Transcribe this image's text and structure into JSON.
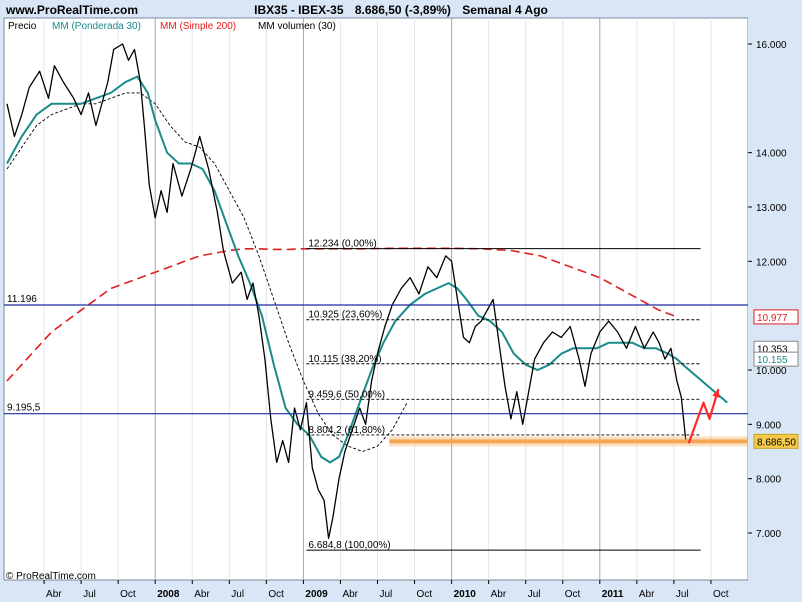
{
  "header": {
    "site": "www.ProRealTime.com",
    "symbol": "IBX35 - IBEX-35",
    "price_change": "8.686,50 (-3,89%)",
    "period": "Semanal  4 Ago"
  },
  "legend": {
    "price": "Precio",
    "ma_weighted": "MM (Ponderada 30)",
    "ma_simple": "MM (Simple 200)",
    "ma_volume": "MM volumen (30)"
  },
  "copyright": "© ProRealTime.com",
  "colors": {
    "background": "#d9e6f5",
    "plot": "#ffffff",
    "ma_weighted": "#1b8a8a",
    "ma_simple": "#e02020",
    "hline": "#1f2a9e",
    "support": "#f5a24a"
  },
  "chart_data": {
    "type": "line",
    "y_axis_side": "right",
    "ylim": [
      6500,
      16600
    ],
    "y_ticks": [
      {
        "value": 16000,
        "label": "16.000"
      },
      {
        "value": 14000,
        "label": "14.000"
      },
      {
        "value": 13000,
        "label": "13.000"
      },
      {
        "value": 12000,
        "label": "12.000"
      },
      {
        "value": 10000,
        "label": "10.000"
      },
      {
        "value": 9000,
        "label": "9.000"
      },
      {
        "value": 8000,
        "label": "8.000"
      },
      {
        "value": 7000,
        "label": "7.000"
      }
    ],
    "x_ticks": [
      {
        "t": 2007.25,
        "label": "Abr",
        "bold": false
      },
      {
        "t": 2007.5,
        "label": "Jul",
        "bold": false
      },
      {
        "t": 2007.75,
        "label": "Oct",
        "bold": false
      },
      {
        "t": 2008.0,
        "label": "2008",
        "bold": true
      },
      {
        "t": 2008.25,
        "label": "Abr",
        "bold": false
      },
      {
        "t": 2008.5,
        "label": "Jul",
        "bold": false
      },
      {
        "t": 2008.75,
        "label": "Oct",
        "bold": false
      },
      {
        "t": 2009.0,
        "label": "2009",
        "bold": true
      },
      {
        "t": 2009.25,
        "label": "Abr",
        "bold": false
      },
      {
        "t": 2009.5,
        "label": "Jul",
        "bold": false
      },
      {
        "t": 2009.75,
        "label": "Oct",
        "bold": false
      },
      {
        "t": 2010.0,
        "label": "2010",
        "bold": true
      },
      {
        "t": 2010.25,
        "label": "Abr",
        "bold": false
      },
      {
        "t": 2010.5,
        "label": "Jul",
        "bold": false
      },
      {
        "t": 2010.75,
        "label": "Oct",
        "bold": false
      },
      {
        "t": 2011.0,
        "label": "2011",
        "bold": true
      },
      {
        "t": 2011.25,
        "label": "Abr",
        "bold": false
      },
      {
        "t": 2011.5,
        "label": "Jul",
        "bold": false
      },
      {
        "t": 2011.75,
        "label": "Oct",
        "bold": false
      }
    ],
    "xlim": [
      2007.0,
      2012.0
    ],
    "price_path": [
      [
        2007.0,
        14900
      ],
      [
        2007.05,
        14300
      ],
      [
        2007.1,
        14700
      ],
      [
        2007.15,
        15200
      ],
      [
        2007.22,
        15500
      ],
      [
        2007.28,
        15000
      ],
      [
        2007.32,
        15600
      ],
      [
        2007.38,
        15300
      ],
      [
        2007.45,
        15000
      ],
      [
        2007.5,
        14700
      ],
      [
        2007.55,
        15100
      ],
      [
        2007.6,
        14500
      ],
      [
        2007.68,
        15300
      ],
      [
        2007.72,
        15900
      ],
      [
        2007.78,
        16000
      ],
      [
        2007.82,
        15700
      ],
      [
        2007.86,
        15900
      ],
      [
        2007.9,
        15300
      ],
      [
        2007.93,
        14400
      ],
      [
        2007.96,
        13400
      ],
      [
        2008.0,
        12800
      ],
      [
        2008.04,
        13300
      ],
      [
        2008.08,
        12900
      ],
      [
        2008.12,
        13800
      ],
      [
        2008.18,
        13200
      ],
      [
        2008.24,
        13700
      ],
      [
        2008.3,
        14300
      ],
      [
        2008.36,
        13700
      ],
      [
        2008.42,
        12900
      ],
      [
        2008.46,
        12200
      ],
      [
        2008.52,
        11600
      ],
      [
        2008.58,
        11800
      ],
      [
        2008.62,
        11300
      ],
      [
        2008.66,
        11600
      ],
      [
        2008.7,
        11000
      ],
      [
        2008.74,
        10200
      ],
      [
        2008.78,
        9100
      ],
      [
        2008.82,
        8300
      ],
      [
        2008.86,
        8700
      ],
      [
        2008.9,
        8300
      ],
      [
        2008.94,
        9300
      ],
      [
        2008.98,
        8900
      ],
      [
        2009.02,
        9400
      ],
      [
        2009.06,
        8200
      ],
      [
        2009.1,
        7800
      ],
      [
        2009.14,
        7600
      ],
      [
        2009.17,
        6900
      ],
      [
        2009.2,
        7300
      ],
      [
        2009.24,
        8000
      ],
      [
        2009.28,
        8500
      ],
      [
        2009.33,
        8900
      ],
      [
        2009.38,
        9300
      ],
      [
        2009.42,
        9000
      ],
      [
        2009.46,
        9800
      ],
      [
        2009.5,
        10300
      ],
      [
        2009.55,
        10800
      ],
      [
        2009.6,
        11200
      ],
      [
        2009.66,
        11500
      ],
      [
        2009.72,
        11700
      ],
      [
        2009.78,
        11400
      ],
      [
        2009.84,
        11900
      ],
      [
        2009.9,
        11700
      ],
      [
        2009.96,
        12100
      ],
      [
        2010.0,
        12000
      ],
      [
        2010.04,
        11300
      ],
      [
        2010.08,
        10600
      ],
      [
        2010.12,
        10500
      ],
      [
        2010.16,
        10800
      ],
      [
        2010.2,
        10900
      ],
      [
        2010.24,
        11100
      ],
      [
        2010.28,
        11300
      ],
      [
        2010.32,
        10500
      ],
      [
        2010.36,
        9700
      ],
      [
        2010.4,
        9100
      ],
      [
        2010.44,
        9600
      ],
      [
        2010.48,
        9000
      ],
      [
        2010.52,
        9600
      ],
      [
        2010.56,
        10200
      ],
      [
        2010.62,
        10500
      ],
      [
        2010.68,
        10700
      ],
      [
        2010.74,
        10600
      ],
      [
        2010.8,
        10800
      ],
      [
        2010.86,
        10200
      ],
      [
        2010.9,
        9700
      ],
      [
        2010.94,
        10300
      ],
      [
        2011.0,
        10700
      ],
      [
        2011.06,
        10900
      ],
      [
        2011.12,
        10700
      ],
      [
        2011.18,
        10400
      ],
      [
        2011.24,
        10800
      ],
      [
        2011.3,
        10400
      ],
      [
        2011.36,
        10700
      ],
      [
        2011.4,
        10500
      ],
      [
        2011.44,
        10200
      ],
      [
        2011.48,
        10400
      ],
      [
        2011.52,
        9800
      ],
      [
        2011.55,
        9500
      ],
      [
        2011.58,
        8700
      ]
    ],
    "ma_weighted_path": [
      [
        2007.0,
        13800
      ],
      [
        2007.1,
        14300
      ],
      [
        2007.2,
        14700
      ],
      [
        2007.3,
        14900
      ],
      [
        2007.4,
        14900
      ],
      [
        2007.5,
        14900
      ],
      [
        2007.6,
        15000
      ],
      [
        2007.7,
        15100
      ],
      [
        2007.8,
        15300
      ],
      [
        2007.88,
        15400
      ],
      [
        2007.95,
        15100
      ],
      [
        2008.0,
        14600
      ],
      [
        2008.08,
        14000
      ],
      [
        2008.16,
        13800
      ],
      [
        2008.24,
        13800
      ],
      [
        2008.32,
        13700
      ],
      [
        2008.4,
        13300
      ],
      [
        2008.48,
        12700
      ],
      [
        2008.56,
        12100
      ],
      [
        2008.64,
        11600
      ],
      [
        2008.72,
        11000
      ],
      [
        2008.8,
        10100
      ],
      [
        2008.88,
        9300
      ],
      [
        2008.96,
        9000
      ],
      [
        2009.04,
        8800
      ],
      [
        2009.12,
        8400
      ],
      [
        2009.18,
        8300
      ],
      [
        2009.24,
        8400
      ],
      [
        2009.3,
        8800
      ],
      [
        2009.38,
        9400
      ],
      [
        2009.46,
        10000
      ],
      [
        2009.54,
        10500
      ],
      [
        2009.62,
        10900
      ],
      [
        2009.72,
        11200
      ],
      [
        2009.82,
        11400
      ],
      [
        2009.9,
        11500
      ],
      [
        2009.98,
        11600
      ],
      [
        2010.04,
        11500
      ],
      [
        2010.1,
        11300
      ],
      [
        2010.18,
        11000
      ],
      [
        2010.26,
        10900
      ],
      [
        2010.34,
        10700
      ],
      [
        2010.42,
        10300
      ],
      [
        2010.5,
        10100
      ],
      [
        2010.58,
        10000
      ],
      [
        2010.66,
        10100
      ],
      [
        2010.74,
        10300
      ],
      [
        2010.82,
        10400
      ],
      [
        2010.9,
        10400
      ],
      [
        2010.98,
        10400
      ],
      [
        2011.06,
        10500
      ],
      [
        2011.14,
        10500
      ],
      [
        2011.22,
        10500
      ],
      [
        2011.3,
        10400
      ],
      [
        2011.38,
        10400
      ],
      [
        2011.46,
        10300
      ],
      [
        2011.52,
        10200
      ],
      [
        2011.56,
        10100
      ]
    ],
    "ma_weighted_projection": [
      [
        2011.56,
        10100
      ],
      [
        2011.86,
        9400
      ]
    ],
    "ma_simple_path": [
      [
        2007.0,
        9800
      ],
      [
        2007.1,
        10100
      ],
      [
        2007.2,
        10400
      ],
      [
        2007.3,
        10700
      ],
      [
        2007.4,
        10900
      ],
      [
        2007.5,
        11100
      ],
      [
        2007.6,
        11300
      ],
      [
        2007.7,
        11500
      ],
      [
        2007.8,
        11600
      ],
      [
        2007.9,
        11700
      ],
      [
        2008.0,
        11800
      ],
      [
        2008.1,
        11900
      ],
      [
        2008.2,
        12000
      ],
      [
        2008.3,
        12100
      ],
      [
        2008.4,
        12150
      ],
      [
        2008.5,
        12200
      ],
      [
        2008.6,
        12230
      ],
      [
        2008.7,
        12230
      ],
      [
        2008.8,
        12220
      ],
      [
        2008.9,
        12220
      ],
      [
        2009.0,
        12230
      ],
      [
        2009.2,
        12230
      ],
      [
        2009.4,
        12230
      ],
      [
        2009.6,
        12240
      ],
      [
        2009.8,
        12240
      ],
      [
        2010.0,
        12240
      ],
      [
        2010.2,
        12230
      ],
      [
        2010.4,
        12200
      ],
      [
        2010.6,
        12100
      ],
      [
        2010.8,
        11900
      ],
      [
        2011.0,
        11700
      ],
      [
        2011.2,
        11400
      ],
      [
        2011.4,
        11100
      ],
      [
        2011.52,
        10980
      ]
    ],
    "volume_ma_path": [
      [
        2007.0,
        13700
      ],
      [
        2007.1,
        14100
      ],
      [
        2007.2,
        14500
      ],
      [
        2007.3,
        14700
      ],
      [
        2007.4,
        14800
      ],
      [
        2007.5,
        14900
      ],
      [
        2007.6,
        14900
      ],
      [
        2007.7,
        15000
      ],
      [
        2007.8,
        15100
      ],
      [
        2007.9,
        15100
      ],
      [
        2008.0,
        14900
      ],
      [
        2008.1,
        14500
      ],
      [
        2008.2,
        14200
      ],
      [
        2008.3,
        14100
      ],
      [
        2008.4,
        13800
      ],
      [
        2008.5,
        13300
      ],
      [
        2008.6,
        12800
      ],
      [
        2008.7,
        12100
      ],
      [
        2008.8,
        11300
      ],
      [
        2008.9,
        10500
      ],
      [
        2009.0,
        9800
      ],
      [
        2009.1,
        9200
      ],
      [
        2009.2,
        8800
      ],
      [
        2009.3,
        8600
      ],
      [
        2009.4,
        8500
      ],
      [
        2009.5,
        8600
      ],
      [
        2009.6,
        8900
      ],
      [
        2009.7,
        9400
      ]
    ],
    "level_lines": [
      {
        "label": "11.196",
        "value": 11196
      },
      {
        "label": "9.195,5",
        "value": 9195.5
      }
    ],
    "fib_levels": [
      {
        "label": "12.234 (0,00%)",
        "value": 12234,
        "style": "solid"
      },
      {
        "label": "10.925 (23,60%)",
        "value": 10925,
        "style": "dashed"
      },
      {
        "label": "10.115 (38,20%)",
        "value": 10115,
        "style": "dashed"
      },
      {
        "label": "9.459,6 (50,00%)",
        "value": 9459.6,
        "style": "dashed"
      },
      {
        "label": "8.804,2 (61,80%)",
        "value": 8804.2,
        "style": "dashed"
      },
      {
        "label": "6.684,8 (100,00%)",
        "value": 6684.8,
        "style": "solid"
      }
    ],
    "fib_x_range": [
      2009.02,
      2011.68
    ],
    "support": {
      "value": 8686.5,
      "x_range": [
        2009.58,
        2012.0
      ]
    },
    "right_tags": [
      {
        "label": "10.977",
        "value": 10977,
        "text_color": "#e02020",
        "bg": "#ffffff",
        "border": "#e02020"
      },
      {
        "label": "10.353",
        "value": 10400,
        "text_color": "#000000",
        "bg": "#ffffff",
        "border": "#888888"
      },
      {
        "label": "10.155",
        "value": 10200,
        "text_color": "#1b8a8a",
        "bg": "#ffffff",
        "border": "#888888"
      },
      {
        "label": "8.686,50",
        "value": 8686.5,
        "text_color": "#000000",
        "bg": "#f5c94a",
        "border": "#c9a028"
      }
    ],
    "forecast_zigzag": [
      [
        2011.6,
        8650
      ],
      [
        2011.7,
        9400
      ],
      [
        2011.74,
        9100
      ],
      [
        2011.8,
        9650
      ]
    ]
  }
}
